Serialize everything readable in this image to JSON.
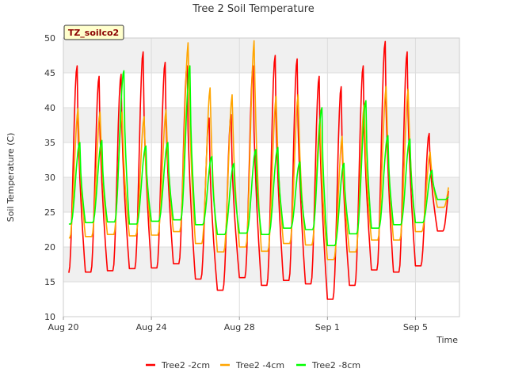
{
  "chart_data": {
    "type": "line",
    "title": "Tree 2 Soil Temperature",
    "xlabel": "Time",
    "ylabel": "Soil Temperature (C)",
    "site_label": "TZ_soilco2",
    "ylim": [
      10,
      50
    ],
    "y_ticks": [
      "10",
      "15",
      "20",
      "25",
      "30",
      "35",
      "40",
      "45",
      "50"
    ],
    "xlim": [
      "2023-08-20",
      "2023-09-07"
    ],
    "x_ticks": [
      {
        "date": "2023-08-20",
        "label": "Aug 20"
      },
      {
        "date": "2023-08-24",
        "label": "Aug 24"
      },
      {
        "date": "2023-08-28",
        "label": "Aug 28"
      },
      {
        "date": "2023-09-01",
        "label": "Sep 1"
      },
      {
        "date": "2023-09-05",
        "label": "Sep 5"
      }
    ],
    "grid": true,
    "legend_position": "bottom",
    "series": [
      {
        "name": "Tree2 -2cm",
        "color": "#ff0000",
        "x": [
          "2023-08-20",
          "2023-08-21",
          "2023-08-22",
          "2023-08-23",
          "2023-08-24",
          "2023-08-25",
          "2023-08-26",
          "2023-08-27",
          "2023-08-28",
          "2023-08-29",
          "2023-08-30",
          "2023-08-31",
          "2023-09-01",
          "2023-09-02",
          "2023-09-03",
          "2023-09-04",
          "2023-09-05",
          "2023-09-06"
        ],
        "min": [
          16.3,
          16.4,
          16.6,
          16.9,
          17.0,
          17.6,
          15.4,
          13.8,
          15.6,
          14.5,
          15.2,
          14.7,
          12.5,
          14.5,
          16.7,
          16.4,
          17.3,
          22.3
        ],
        "max": [
          46.0,
          44.5,
          44.8,
          48.0,
          46.5,
          46.0,
          38.5,
          39.0,
          46.0,
          47.5,
          47.0,
          44.5,
          43.0,
          46.0,
          49.5,
          48.0,
          36.3,
          30.0
        ]
      },
      {
        "name": "Tree2 -4cm",
        "color": "#ffa500",
        "x": [
          "2023-08-20",
          "2023-08-21",
          "2023-08-22",
          "2023-08-23",
          "2023-08-24",
          "2023-08-25",
          "2023-08-26",
          "2023-08-27",
          "2023-08-28",
          "2023-08-29",
          "2023-08-30",
          "2023-08-31",
          "2023-09-01",
          "2023-09-02",
          "2023-09-03",
          "2023-09-04",
          "2023-09-05",
          "2023-09-06"
        ],
        "min": [
          21.3,
          21.5,
          21.8,
          21.6,
          21.7,
          22.2,
          20.5,
          19.3,
          20.0,
          19.4,
          20.5,
          20.3,
          18.2,
          19.3,
          21.0,
          21.0,
          22.2,
          25.7
        ],
        "max": [
          40.0,
          39.5,
          39.5,
          38.8,
          39.8,
          49.5,
          43.0,
          42.0,
          49.8,
          41.8,
          42.0,
          38.5,
          36.0,
          40.5,
          43.2,
          42.8,
          33.7,
          31.0
        ]
      },
      {
        "name": "Tree2 -8cm",
        "color": "#00ff00",
        "x": [
          "2023-08-20",
          "2023-08-21",
          "2023-08-22",
          "2023-08-23",
          "2023-08-24",
          "2023-08-25",
          "2023-08-26",
          "2023-08-27",
          "2023-08-28",
          "2023-08-29",
          "2023-08-30",
          "2023-08-31",
          "2023-09-01",
          "2023-09-02",
          "2023-09-03",
          "2023-09-04",
          "2023-09-05",
          "2023-09-06"
        ],
        "min": [
          23.3,
          23.5,
          23.6,
          23.3,
          23.7,
          23.9,
          23.2,
          21.8,
          22.0,
          21.8,
          22.7,
          22.5,
          20.2,
          21.9,
          22.7,
          23.2,
          23.5,
          26.8
        ],
        "max": [
          35.0,
          35.3,
          45.3,
          34.5,
          35.0,
          46.0,
          33.0,
          32.0,
          34.0,
          34.3,
          32.2,
          40.0,
          32.0,
          41.0,
          36.0,
          35.5,
          31.0,
          28.0
        ]
      }
    ]
  }
}
